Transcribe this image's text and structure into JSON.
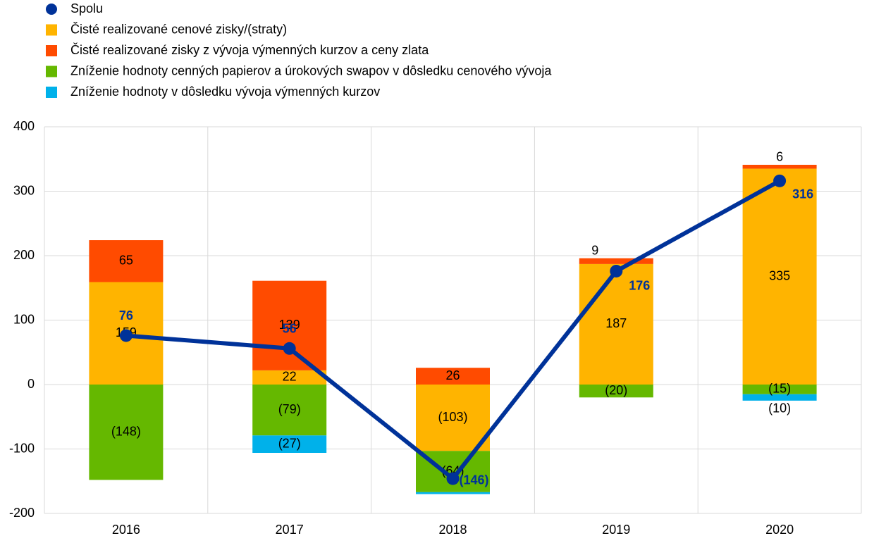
{
  "chart_data": {
    "type": "bar",
    "categories": [
      "2016",
      "2017",
      "2018",
      "2019",
      "2020"
    ],
    "series": [
      {
        "name": "Spolu",
        "type": "line",
        "color": "#003299",
        "values": [
          76,
          56,
          -146,
          176,
          316
        ],
        "value_labels": [
          "76",
          "56",
          "(146)",
          "176",
          "316"
        ]
      },
      {
        "name": "Čisté realizované cenové zisky/(straty)",
        "color": "#FFB400",
        "values": [
          159,
          22,
          -103,
          187,
          335
        ],
        "value_labels": [
          "159",
          "22",
          "(103)",
          "187",
          "335"
        ]
      },
      {
        "name": "Čisté realizované zisky z vývoja výmenných kurzov a ceny zlata",
        "color": "#FF4B00",
        "values": [
          65,
          139,
          26,
          9,
          6
        ],
        "value_labels": [
          "65",
          "139",
          "26",
          "9",
          "6"
        ]
      },
      {
        "name": "Zníženie hodnoty cenných papierov a úrokových swapov v dôsledku cenového vývoja",
        "color": "#65B800",
        "values": [
          -148,
          -79,
          -64,
          -20,
          -15
        ],
        "value_labels": [
          "(148)",
          "(79)",
          "(64)",
          "(20)",
          "(15)"
        ]
      },
      {
        "name": "Zníženie hodnoty v dôsledku vývoja výmenných kurzov",
        "color": "#00B1EA",
        "values": [
          null,
          -27,
          -3,
          null,
          -10
        ],
        "value_labels": [
          null,
          "(27)",
          null,
          null,
          "(10)"
        ]
      }
    ],
    "ylim": [
      -200,
      400
    ],
    "yticks": [
      -200,
      -100,
      0,
      100,
      200,
      300,
      400
    ],
    "grid": true
  }
}
